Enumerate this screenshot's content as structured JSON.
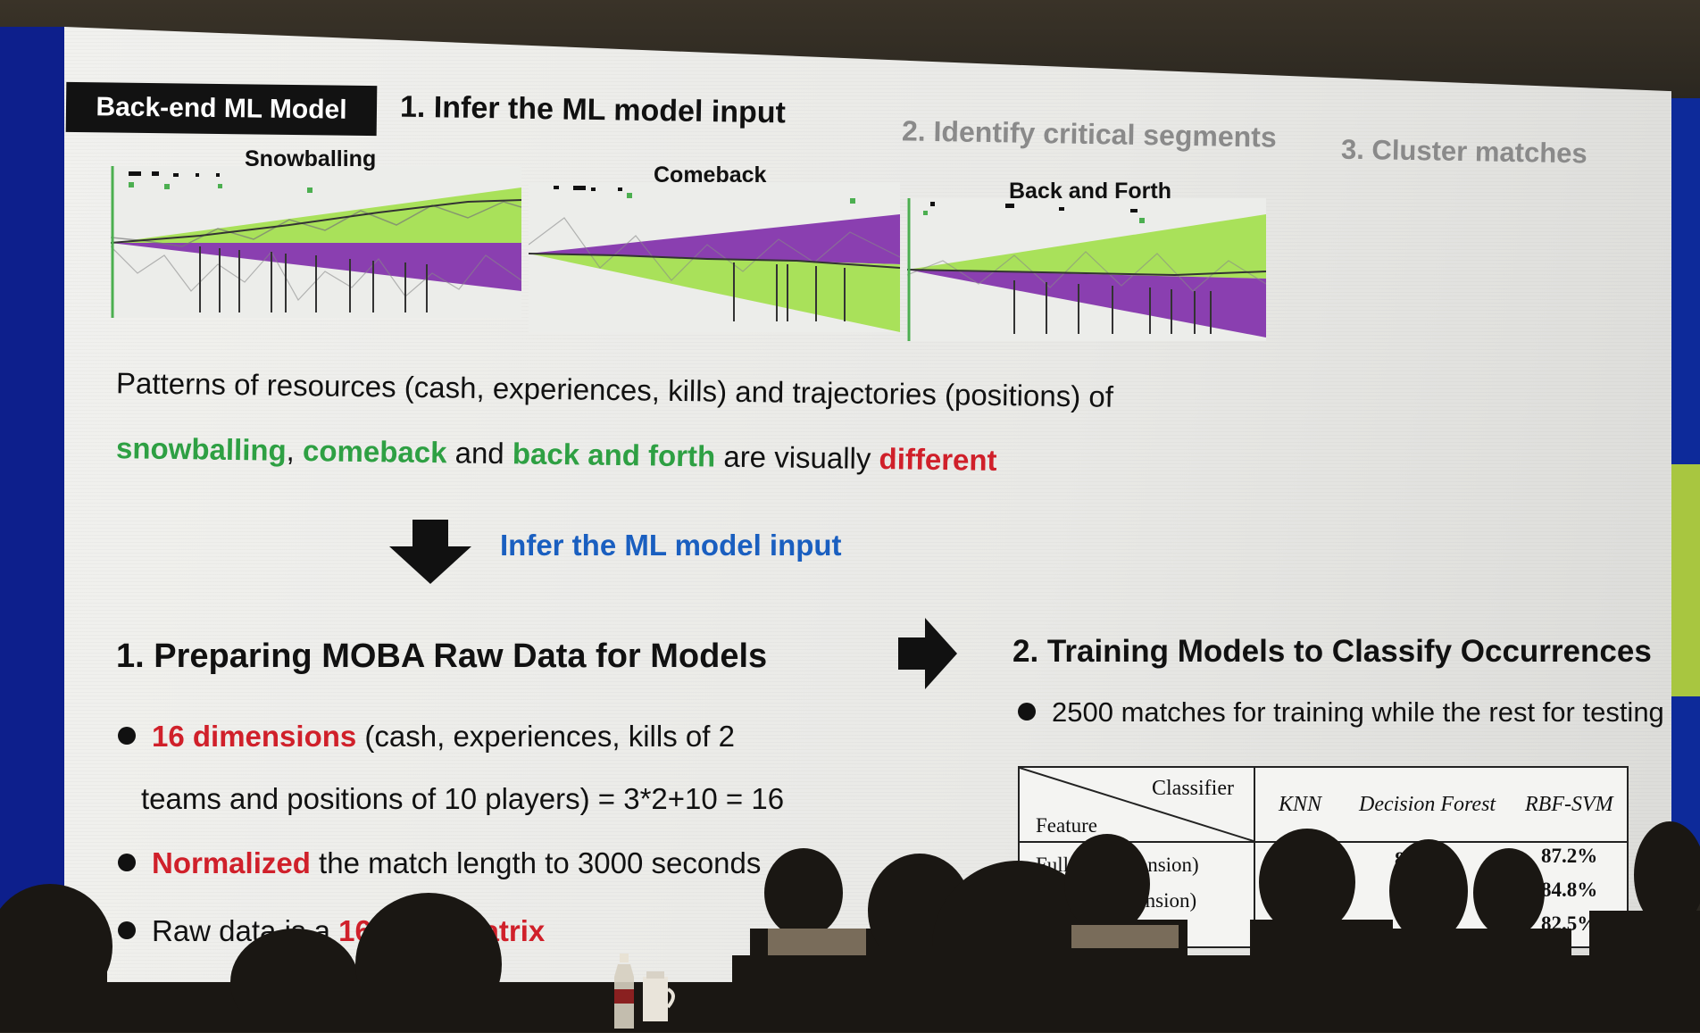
{
  "slide": {
    "tag": "Back-end ML Model",
    "steps": [
      "1. Infer the ML model input",
      "2. Identify critical segments",
      "3. Cluster matches"
    ],
    "charts": [
      {
        "label": "Snowballing"
      },
      {
        "label": "Comeback"
      },
      {
        "label": "Back and Forth"
      }
    ],
    "paragraph": {
      "line1": "Patterns of resources (cash, experiences, kills) and trajectories (positions) of",
      "line2_parts": [
        "snowballing",
        ", ",
        "comeback",
        " and ",
        "back and forth",
        " are visually ",
        "different"
      ]
    },
    "infer_label": "Infer the ML model input",
    "left_heading": "1. Preparing MOBA Raw Data for Models",
    "right_heading": "2. Training Models to Classify Occurrences",
    "bullets": {
      "b1_highlight": "16 dimensions",
      "b1_rest": " (cash, experiences, kills of 2",
      "b1_cont": "teams and positions of 10 players) = 3*2+10 = 16",
      "b2_highlight": "Normalized",
      "b2_rest": " the match length to 3000 seconds",
      "b3_text": "Raw data is a ",
      "b3_highlight": "16*3000 matrix",
      "right_b1": "2500 matches for training while the rest for testing"
    },
    "table": {
      "corner_top": "Classifier",
      "corner_bottom": "Feature",
      "columns": [
        "KNN",
        "Decision Forest",
        "RBF-SVM"
      ],
      "rows": [
        {
          "feature": "Full (all dimension)",
          "values": [
            "",
            "85.1%",
            "87.2%"
          ]
        },
        {
          "feature": "Cash (1 dimension)",
          "values": [
            "",
            "",
            "84.8%"
          ]
        },
        {
          "feature": "",
          "values": [
            "",
            "",
            "82.5%"
          ]
        }
      ]
    }
  },
  "colors": {
    "green_text": "#2ea043",
    "red_text": "#d0202a",
    "blue_text": "#1a5fc0",
    "area_green": "#a9e15a",
    "area_purple": "#8a3fb0",
    "tag_bg": "#121212"
  }
}
